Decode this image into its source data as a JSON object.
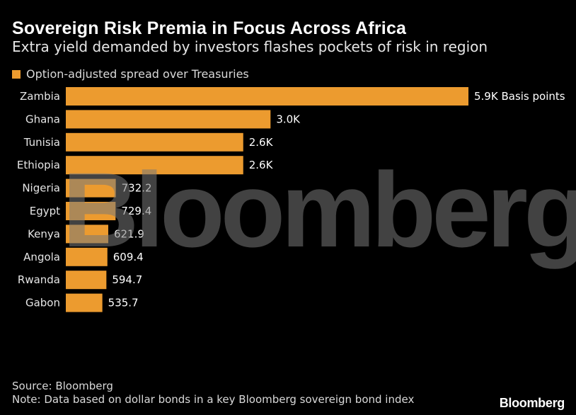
{
  "header": {
    "title": "Sovereign Risk Premia in Focus Across Africa",
    "subtitle": "Extra yield demanded by investors flashes pockets of risk in region"
  },
  "legend": {
    "label": "Option-adjusted spread over Treasuries",
    "color": "#ec9b2f"
  },
  "chart_data": {
    "type": "bar",
    "orientation": "horizontal",
    "categories": [
      "Zambia",
      "Ghana",
      "Tunisia",
      "Ethiopia",
      "Nigeria",
      "Egypt",
      "Kenya",
      "Angola",
      "Rwanda",
      "Gabon"
    ],
    "values": [
      5900,
      3000,
      2600,
      2600,
      732.2,
      729.4,
      621.9,
      609.4,
      594.7,
      535.7
    ],
    "labels": [
      "5.9K Basis points",
      "3.0K",
      "2.6K",
      "2.6K",
      "732.2",
      "729.4",
      "621.9",
      "609.4",
      "594.7",
      "535.7"
    ],
    "series": [
      {
        "name": "Option-adjusted spread over Treasuries",
        "values": [
          5900,
          3000,
          2600,
          2600,
          732.2,
          729.4,
          621.9,
          609.4,
          594.7,
          535.7
        ]
      }
    ],
    "xlim": [
      0,
      5900
    ],
    "grid": false,
    "legend_position": "top-left",
    "bar_color": "#ec9b2f"
  },
  "watermark": "Bloomberg",
  "footer": {
    "source": "Source: Bloomberg",
    "note": "Note: Data based on dollar bonds in a key Bloomberg sovereign bond index",
    "logo": "Bloomberg"
  }
}
